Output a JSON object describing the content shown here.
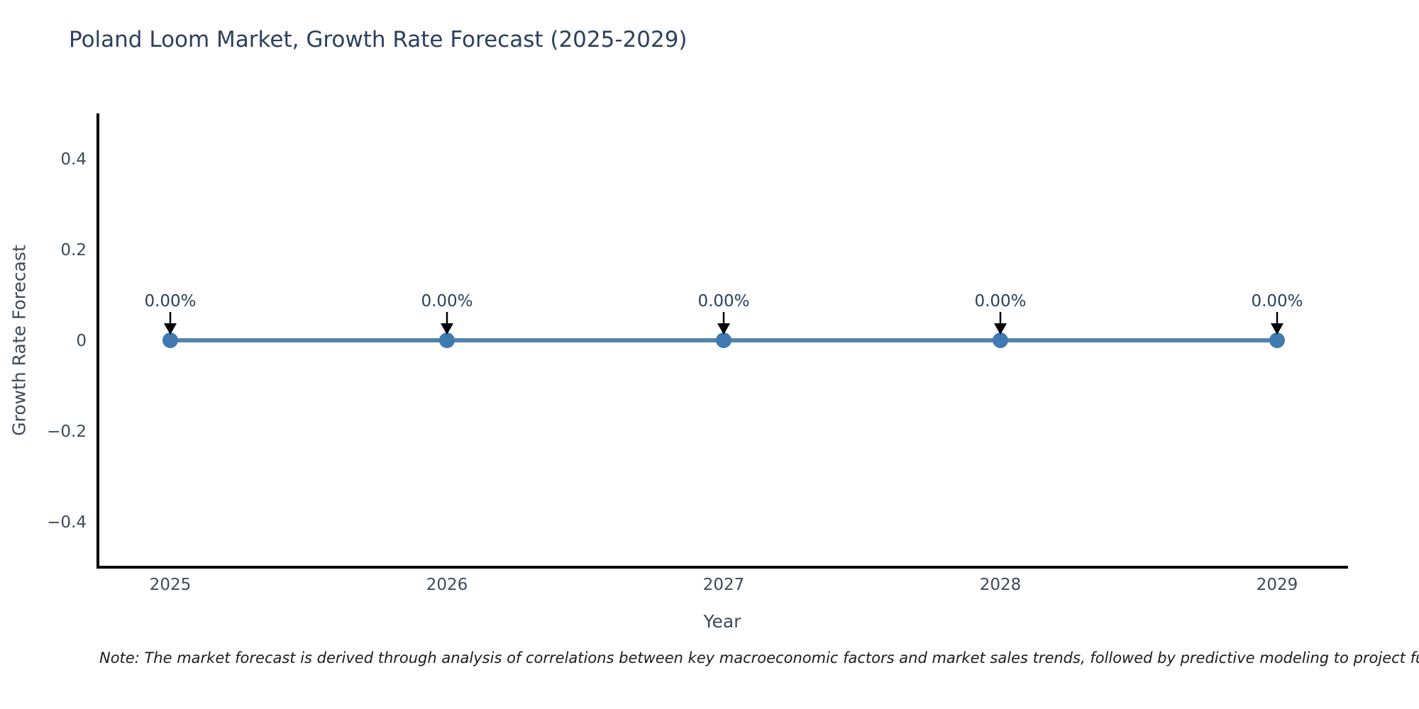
{
  "note": "Note: The market forecast is derived through analysis of correlations between key macroeconomic factors and market sales trends, followed by predictive modeling to project future sal",
  "chart_data": {
    "type": "line",
    "title": "Poland Loom Market, Growth Rate Forecast (2025-2029)",
    "xlabel": "Year",
    "ylabel": "Growth Rate Forecast",
    "categories": [
      "2025",
      "2026",
      "2027",
      "2028",
      "2029"
    ],
    "values": [
      0,
      0,
      0,
      0,
      0
    ],
    "point_labels": [
      "0.00%",
      "0.00%",
      "0.00%",
      "0.00%",
      "0.00%"
    ],
    "y_tick_labels": [
      "0.4",
      "0.2",
      "0",
      "−0.2",
      "−0.4"
    ],
    "y_tick_values": [
      0.4,
      0.2,
      0,
      -0.2,
      -0.4
    ],
    "ylim": [
      -0.5,
      0.5
    ],
    "grid": false,
    "legend": "none",
    "annotation_arrows": "down-to-point",
    "colors": {
      "line": "#5484ad",
      "marker": "#3f7ab0",
      "arrow": "#000000",
      "axis": "#000000",
      "title_text": "#2c3f5e",
      "tick_text": "#3e4a5a",
      "annotation_text": "#2c3f5e",
      "note_text": "#1c1c1c"
    }
  }
}
